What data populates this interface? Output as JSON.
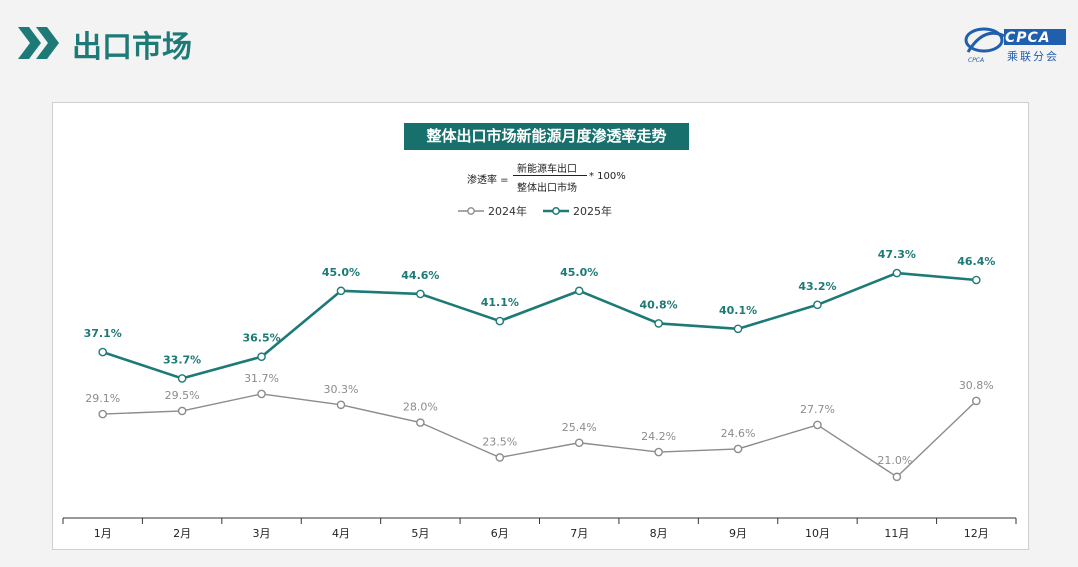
{
  "header": {
    "title": "出口市场",
    "logo_text": "CPCA",
    "logo_sub": "乘联分会"
  },
  "formula": {
    "lhs": "渗透率 =",
    "numerator": "新能源车出口",
    "denominator": "整体出口市场",
    "rhs": "* 100%"
  },
  "colors": {
    "accent": "#18706c",
    "series_2024": "#8c8c8c",
    "series_2025": "#1d7a76",
    "background": "#f3f3f3"
  },
  "chart_data": {
    "type": "line",
    "title": "整体出口市场新能源月度渗透率走势",
    "categories": [
      "1月",
      "2月",
      "3月",
      "4月",
      "5月",
      "6月",
      "7月",
      "8月",
      "9月",
      "10月",
      "11月",
      "12月"
    ],
    "series": [
      {
        "name": "2024年",
        "values": [
          29.1,
          29.5,
          31.7,
          30.3,
          28.0,
          23.5,
          25.4,
          24.2,
          24.6,
          27.7,
          21.0,
          30.8
        ],
        "labels": [
          "29.1%",
          "29.5%",
          "31.7%",
          "30.3%",
          "28.0%",
          "23.5%",
          "25.4%",
          "24.2%",
          "24.6%",
          "27.7%",
          "21.0%",
          "30.8%"
        ]
      },
      {
        "name": "2025年",
        "values": [
          37.1,
          33.7,
          36.5,
          45.0,
          44.6,
          41.1,
          45.0,
          40.8,
          40.1,
          43.2,
          47.3,
          46.4
        ],
        "labels": [
          "37.1%",
          "33.7%",
          "36.5%",
          "45.0%",
          "44.6%",
          "41.1%",
          "45.0%",
          "40.8%",
          "40.1%",
          "43.2%",
          "47.3%",
          "46.4%"
        ]
      }
    ],
    "ylim": [
      10,
      50
    ],
    "grid": false,
    "legend_position": "top-center"
  }
}
